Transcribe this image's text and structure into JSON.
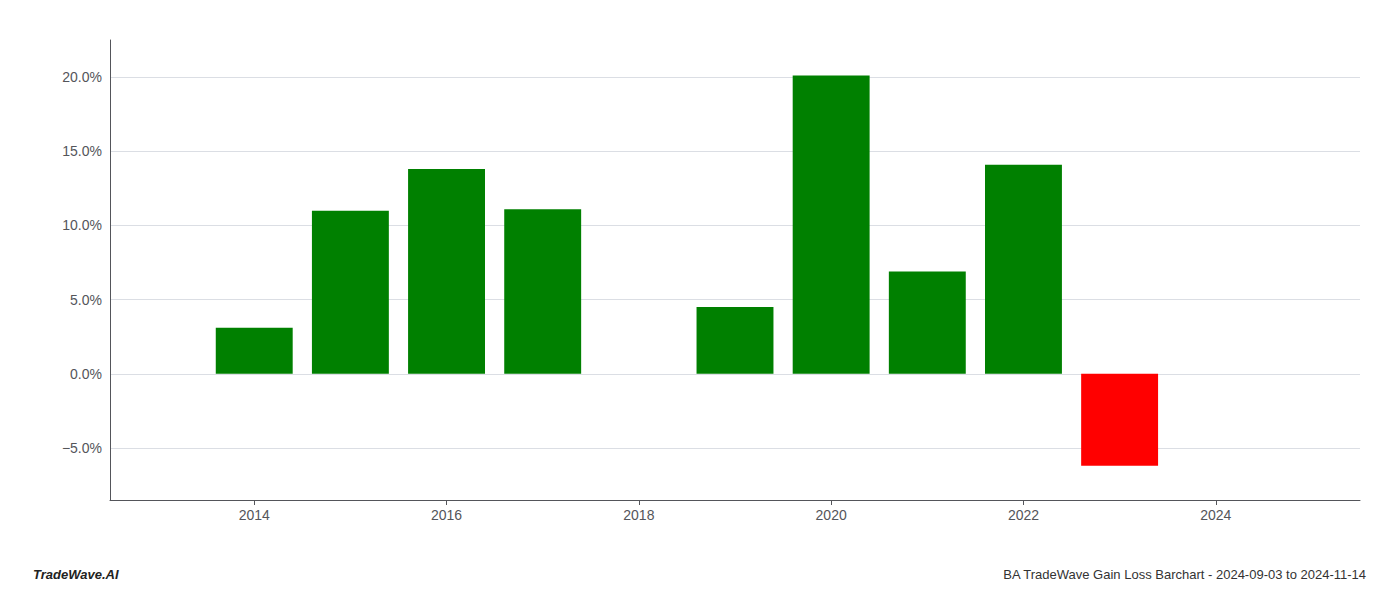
{
  "chart_data": {
    "type": "bar",
    "title": "BA TradeWave Gain Loss Barchart - 2024-09-03 to 2024-11-14",
    "annotations": [
      "TradeWave.AI"
    ],
    "x": [
      2014,
      2015,
      2016,
      2017,
      2019,
      2020,
      2021,
      2022,
      2023
    ],
    "values": [
      0.031,
      0.11,
      0.138,
      0.111,
      0.045,
      0.201,
      0.069,
      0.141,
      -0.062
    ],
    "colors": [
      "#008000",
      "#008000",
      "#008000",
      "#008000",
      "#008000",
      "#008000",
      "#008000",
      "#008000",
      "#ff0000"
    ],
    "xlim": [
      2012.5,
      2025.5
    ],
    "xticks": [
      2014,
      2016,
      2018,
      2020,
      2022,
      2024
    ],
    "ylim": [
      -0.085,
      0.225
    ],
    "yticks": [
      {
        "value": -0.05,
        "label": "−5.0%"
      },
      {
        "value": 0.0,
        "label": "0.0%"
      },
      {
        "value": 0.05,
        "label": "5.0%"
      },
      {
        "value": 0.1,
        "label": "10.0%"
      },
      {
        "value": 0.15,
        "label": "15.0%"
      },
      {
        "value": 0.2,
        "label": "20.0%"
      }
    ],
    "grid": true
  }
}
